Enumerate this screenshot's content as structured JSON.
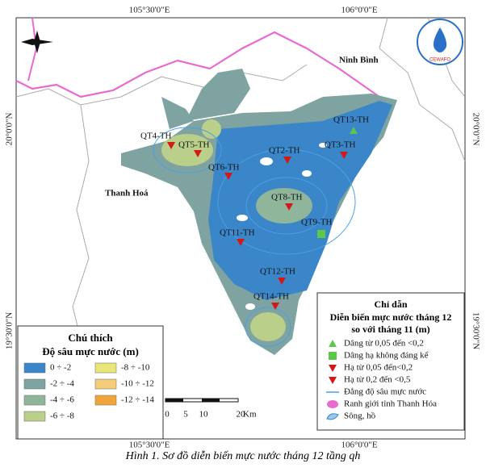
{
  "header": {
    "logo_text": "CEWAFO"
  },
  "map": {
    "coords": {
      "top": [
        "105°30'0\"E",
        "106°0'0\"E"
      ],
      "bottom": [
        "105°30'0\"E",
        "106°0'0\"E"
      ],
      "left": [
        "20°0'0\"N",
        "19°30'0\"N"
      ],
      "right": [
        "20°0'0\"N",
        "19°30'0\"N"
      ]
    },
    "places": [
      "Ninh Bình",
      "Thanh Hoá"
    ],
    "stations": [
      "QT13-TH",
      "QT4-TH",
      "QT5-TH",
      "QT2-TH",
      "QT3-TH",
      "QT6-TH",
      "QT8-TH",
      "QT9-TH",
      "QT11-TH",
      "QT12-TH",
      "QT14-TH"
    ]
  },
  "legend_depth": {
    "title": "Chú thích",
    "subtitle": "Độ sâu mực nước (m)",
    "items": [
      "0 ÷ -2",
      "-2 ÷ -4",
      "-4 ÷ -6",
      "-6 ÷ -8",
      "-8 ÷ -10",
      "-10 ÷ -12",
      "-12 ÷ -14"
    ]
  },
  "legend_change": {
    "title": "Chỉ dẫn",
    "subtitle": [
      "Diễn biến mực nước tháng 12",
      "so với tháng 11 (m)"
    ],
    "items": [
      "Dâng từ 0,05 đến <0,2",
      "Dâng hạ không đáng kể",
      "Hạ từ 0,05 đến<0,2",
      "Hạ từ 0,2 đến <0,5",
      "Đẳng độ sâu mực nước",
      "Ranh giới tỉnh Thanh Hóa",
      "Sông, hồ"
    ]
  },
  "scale_bar": {
    "ticks": [
      "0",
      "5",
      "10",
      "20"
    ],
    "unit": "Km"
  },
  "caption": "Hình 1. Sơ đồ diễn biến mực nước tháng 12 tầng qh"
}
